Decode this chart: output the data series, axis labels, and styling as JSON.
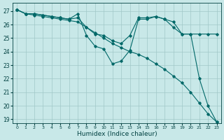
{
  "xlabel": "Humidex (Indice chaleur)",
  "bg_color": "#c8e8e8",
  "grid_color": "#a0c8c8",
  "line_color": "#006868",
  "xlim": [
    -0.5,
    23.5
  ],
  "ylim": [
    18.7,
    27.6
  ],
  "yticks": [
    19,
    20,
    21,
    22,
    23,
    24,
    25,
    26,
    27
  ],
  "xticks": [
    0,
    1,
    2,
    3,
    4,
    5,
    6,
    7,
    8,
    9,
    10,
    11,
    12,
    13,
    14,
    15,
    16,
    17,
    18,
    19,
    20,
    21,
    22,
    23
  ],
  "series": [
    {
      "x": [
        0,
        1,
        2,
        3,
        4,
        5,
        6,
        7,
        8,
        9,
        10,
        11,
        12,
        13,
        14,
        15,
        16,
        17,
        18,
        19,
        20,
        21,
        22,
        23
      ],
      "y": [
        27.1,
        26.8,
        26.7,
        26.6,
        26.5,
        26.4,
        26.3,
        26.2,
        25.8,
        25.4,
        25.0,
        24.6,
        24.3,
        24.0,
        23.8,
        23.5,
        23.1,
        22.7,
        22.2,
        21.7,
        21.0,
        20.2,
        19.4,
        18.8
      ]
    },
    {
      "x": [
        0,
        1,
        2,
        3,
        4,
        5,
        6,
        7,
        8,
        9,
        10,
        11,
        12,
        13,
        14,
        15,
        16,
        17,
        18,
        19,
        20,
        21,
        22,
        23
      ],
      "y": [
        27.1,
        26.8,
        26.8,
        26.7,
        26.6,
        26.5,
        26.4,
        26.8,
        25.2,
        24.4,
        24.2,
        23.1,
        23.3,
        24.1,
        26.4,
        26.4,
        26.6,
        26.4,
        26.2,
        25.3,
        25.3,
        22.0,
        20.0,
        18.8
      ]
    },
    {
      "x": [
        0,
        1,
        2,
        3,
        4,
        5,
        6,
        7,
        8,
        9,
        10,
        11,
        12,
        13,
        14,
        15,
        16,
        17,
        18,
        19,
        20,
        21,
        22,
        23
      ],
      "y": [
        27.1,
        26.8,
        26.8,
        26.7,
        26.6,
        26.5,
        26.4,
        26.5,
        25.8,
        25.3,
        25.2,
        24.8,
        24.6,
        25.2,
        26.5,
        26.5,
        26.6,
        26.4,
        25.8,
        25.3,
        25.3,
        25.3,
        25.3,
        25.3
      ]
    }
  ]
}
